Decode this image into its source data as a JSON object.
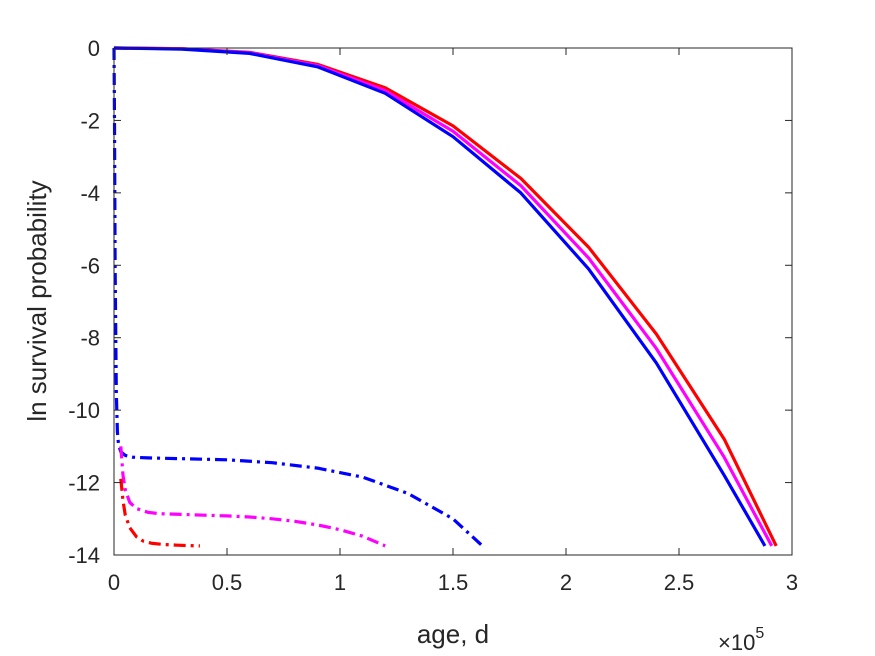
{
  "chart_data": {
    "type": "line",
    "title": "",
    "xlabel": "age, d",
    "ylabel": "ln survival probability",
    "x_exponent_label": {
      "base": "×10",
      "exponent": "5"
    },
    "xlim": [
      0,
      3
    ],
    "ylim": [
      -14,
      0
    ],
    "x_ticks": [
      "0",
      "0.5",
      "1",
      "1.5",
      "2",
      "2.5",
      "3"
    ],
    "y_ticks": [
      "0",
      "-2",
      "-4",
      "-6",
      "-8",
      "-10",
      "-12",
      "-14"
    ],
    "grid": false,
    "legend": "none",
    "series": [
      {
        "color": "#ff0000",
        "style": "solid",
        "x": [
          0,
          0.3,
          0.6,
          0.9,
          1.2,
          1.5,
          1.8,
          2.1,
          2.4,
          2.7,
          2.93
        ],
        "y": [
          0,
          -0.02,
          -0.12,
          -0.45,
          -1.1,
          -2.15,
          -3.6,
          -5.5,
          -7.9,
          -10.8,
          -13.75
        ]
      },
      {
        "color": "#ff00ff",
        "style": "solid",
        "x": [
          0,
          0.3,
          0.6,
          0.9,
          1.2,
          1.5,
          1.8,
          2.1,
          2.4,
          2.7,
          2.91
        ],
        "y": [
          0,
          -0.02,
          -0.13,
          -0.48,
          -1.18,
          -2.3,
          -3.8,
          -5.8,
          -8.3,
          -11.3,
          -13.75
        ]
      },
      {
        "color": "#0000ff",
        "style": "solid",
        "x": [
          0,
          0.3,
          0.6,
          0.9,
          1.2,
          1.5,
          1.8,
          2.1,
          2.4,
          2.7,
          2.88
        ],
        "y": [
          0,
          -0.03,
          -0.15,
          -0.52,
          -1.25,
          -2.45,
          -4.0,
          -6.1,
          -8.7,
          -11.8,
          -13.75
        ]
      },
      {
        "color": "#0000ff",
        "style": "dashdot",
        "x": [
          0,
          0.002,
          0.005,
          0.01,
          0.015,
          0.02,
          0.03,
          0.05,
          0.08,
          0.15,
          0.3,
          0.5,
          0.7,
          0.9,
          1.1,
          1.3,
          1.5,
          1.63
        ],
        "y": [
          0,
          -2,
          -6,
          -9.5,
          -10.6,
          -10.95,
          -11.15,
          -11.25,
          -11.3,
          -11.32,
          -11.34,
          -11.37,
          -11.45,
          -11.6,
          -11.85,
          -12.3,
          -13.0,
          -13.75
        ]
      },
      {
        "color": "#ff00ff",
        "style": "dashdot",
        "x": [
          0.03,
          0.04,
          0.05,
          0.07,
          0.1,
          0.15,
          0.2,
          0.3,
          0.4,
          0.5,
          0.6,
          0.7,
          0.8,
          0.9,
          1.0,
          1.1,
          1.2
        ],
        "y": [
          -11.0,
          -11.8,
          -12.2,
          -12.55,
          -12.72,
          -12.82,
          -12.86,
          -12.88,
          -12.9,
          -12.92,
          -12.95,
          -13.0,
          -13.07,
          -13.17,
          -13.3,
          -13.48,
          -13.75
        ]
      },
      {
        "color": "#ff0000",
        "style": "dashdot",
        "x": [
          0.03,
          0.04,
          0.05,
          0.07,
          0.1,
          0.13,
          0.17,
          0.22,
          0.28,
          0.33,
          0.38
        ],
        "y": [
          -11.9,
          -12.5,
          -12.9,
          -13.25,
          -13.5,
          -13.62,
          -13.68,
          -13.71,
          -13.73,
          -13.74,
          -13.75
        ]
      }
    ]
  }
}
